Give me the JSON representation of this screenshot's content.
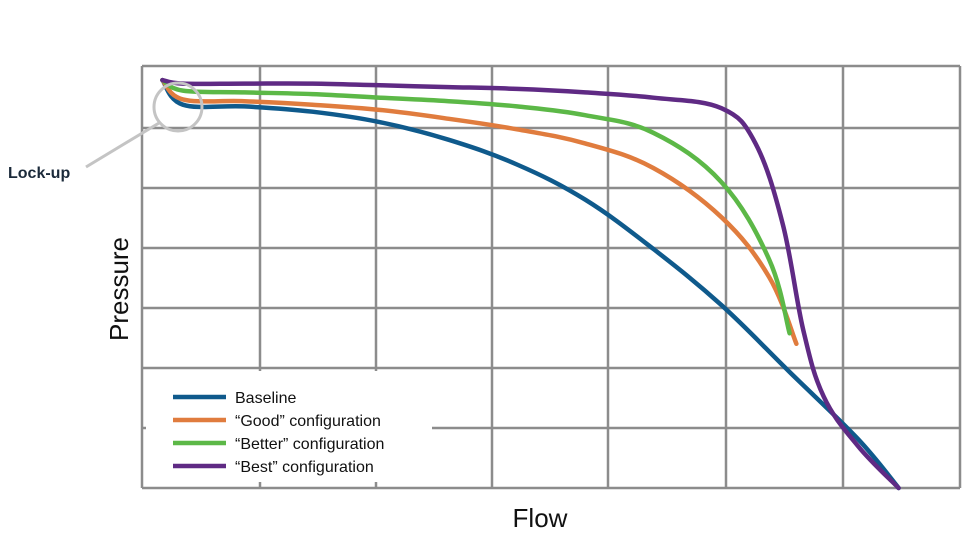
{
  "chart_data": {
    "type": "line",
    "title": "",
    "xlabel": "Flow",
    "ylabel": "Pressure",
    "xlim": [
      0,
      12
    ],
    "ylim": [
      0,
      12
    ],
    "grid": true,
    "legend_position": "bottom-left",
    "annotation": {
      "label": "Lock-up",
      "x": 0.3,
      "y": 11.2
    },
    "series": [
      {
        "name": "Baseline",
        "color": "#0f5a8c",
        "x": [
          0.3,
          0.6,
          1.5,
          2.5,
          3.5,
          4.5,
          5.5,
          6.5,
          7.5,
          8.5,
          9.5,
          10.5,
          11.1
        ],
        "y": [
          11.6,
          10.9,
          10.85,
          10.7,
          10.4,
          9.9,
          9.2,
          8.2,
          6.8,
          5.2,
          3.3,
          1.4,
          0
        ]
      },
      {
        "name": "“Good” configuration",
        "color": "#e07c3e",
        "x": [
          0.3,
          0.6,
          1.5,
          2.5,
          3.5,
          4.5,
          5.5,
          6.5,
          7.5,
          8.5,
          9.2,
          9.6
        ],
        "y": [
          11.6,
          11.05,
          11.0,
          10.9,
          10.75,
          10.5,
          10.2,
          9.8,
          9.1,
          7.7,
          6.0,
          4.1
        ]
      },
      {
        "name": "“Better” configuration",
        "color": "#5cb847",
        "x": [
          0.3,
          0.6,
          1.5,
          2.5,
          3.5,
          4.5,
          5.5,
          6.5,
          7.5,
          8.5,
          9.2,
          9.5
        ],
        "y": [
          11.6,
          11.3,
          11.25,
          11.2,
          11.1,
          11.0,
          10.85,
          10.6,
          10.1,
          8.7,
          6.5,
          4.4
        ]
      },
      {
        "name": "“Best” configuration",
        "color": "#5f2a84",
        "x": [
          0.3,
          0.6,
          1.5,
          2.5,
          3.5,
          4.5,
          5.5,
          6.5,
          7.5,
          8.5,
          9.0,
          9.4,
          9.7,
          10.0,
          10.5,
          11.1
        ],
        "y": [
          11.6,
          11.5,
          11.5,
          11.5,
          11.45,
          11.4,
          11.35,
          11.25,
          11.1,
          10.8,
          9.8,
          7.5,
          4.5,
          2.6,
          1.2,
          0
        ]
      }
    ]
  }
}
